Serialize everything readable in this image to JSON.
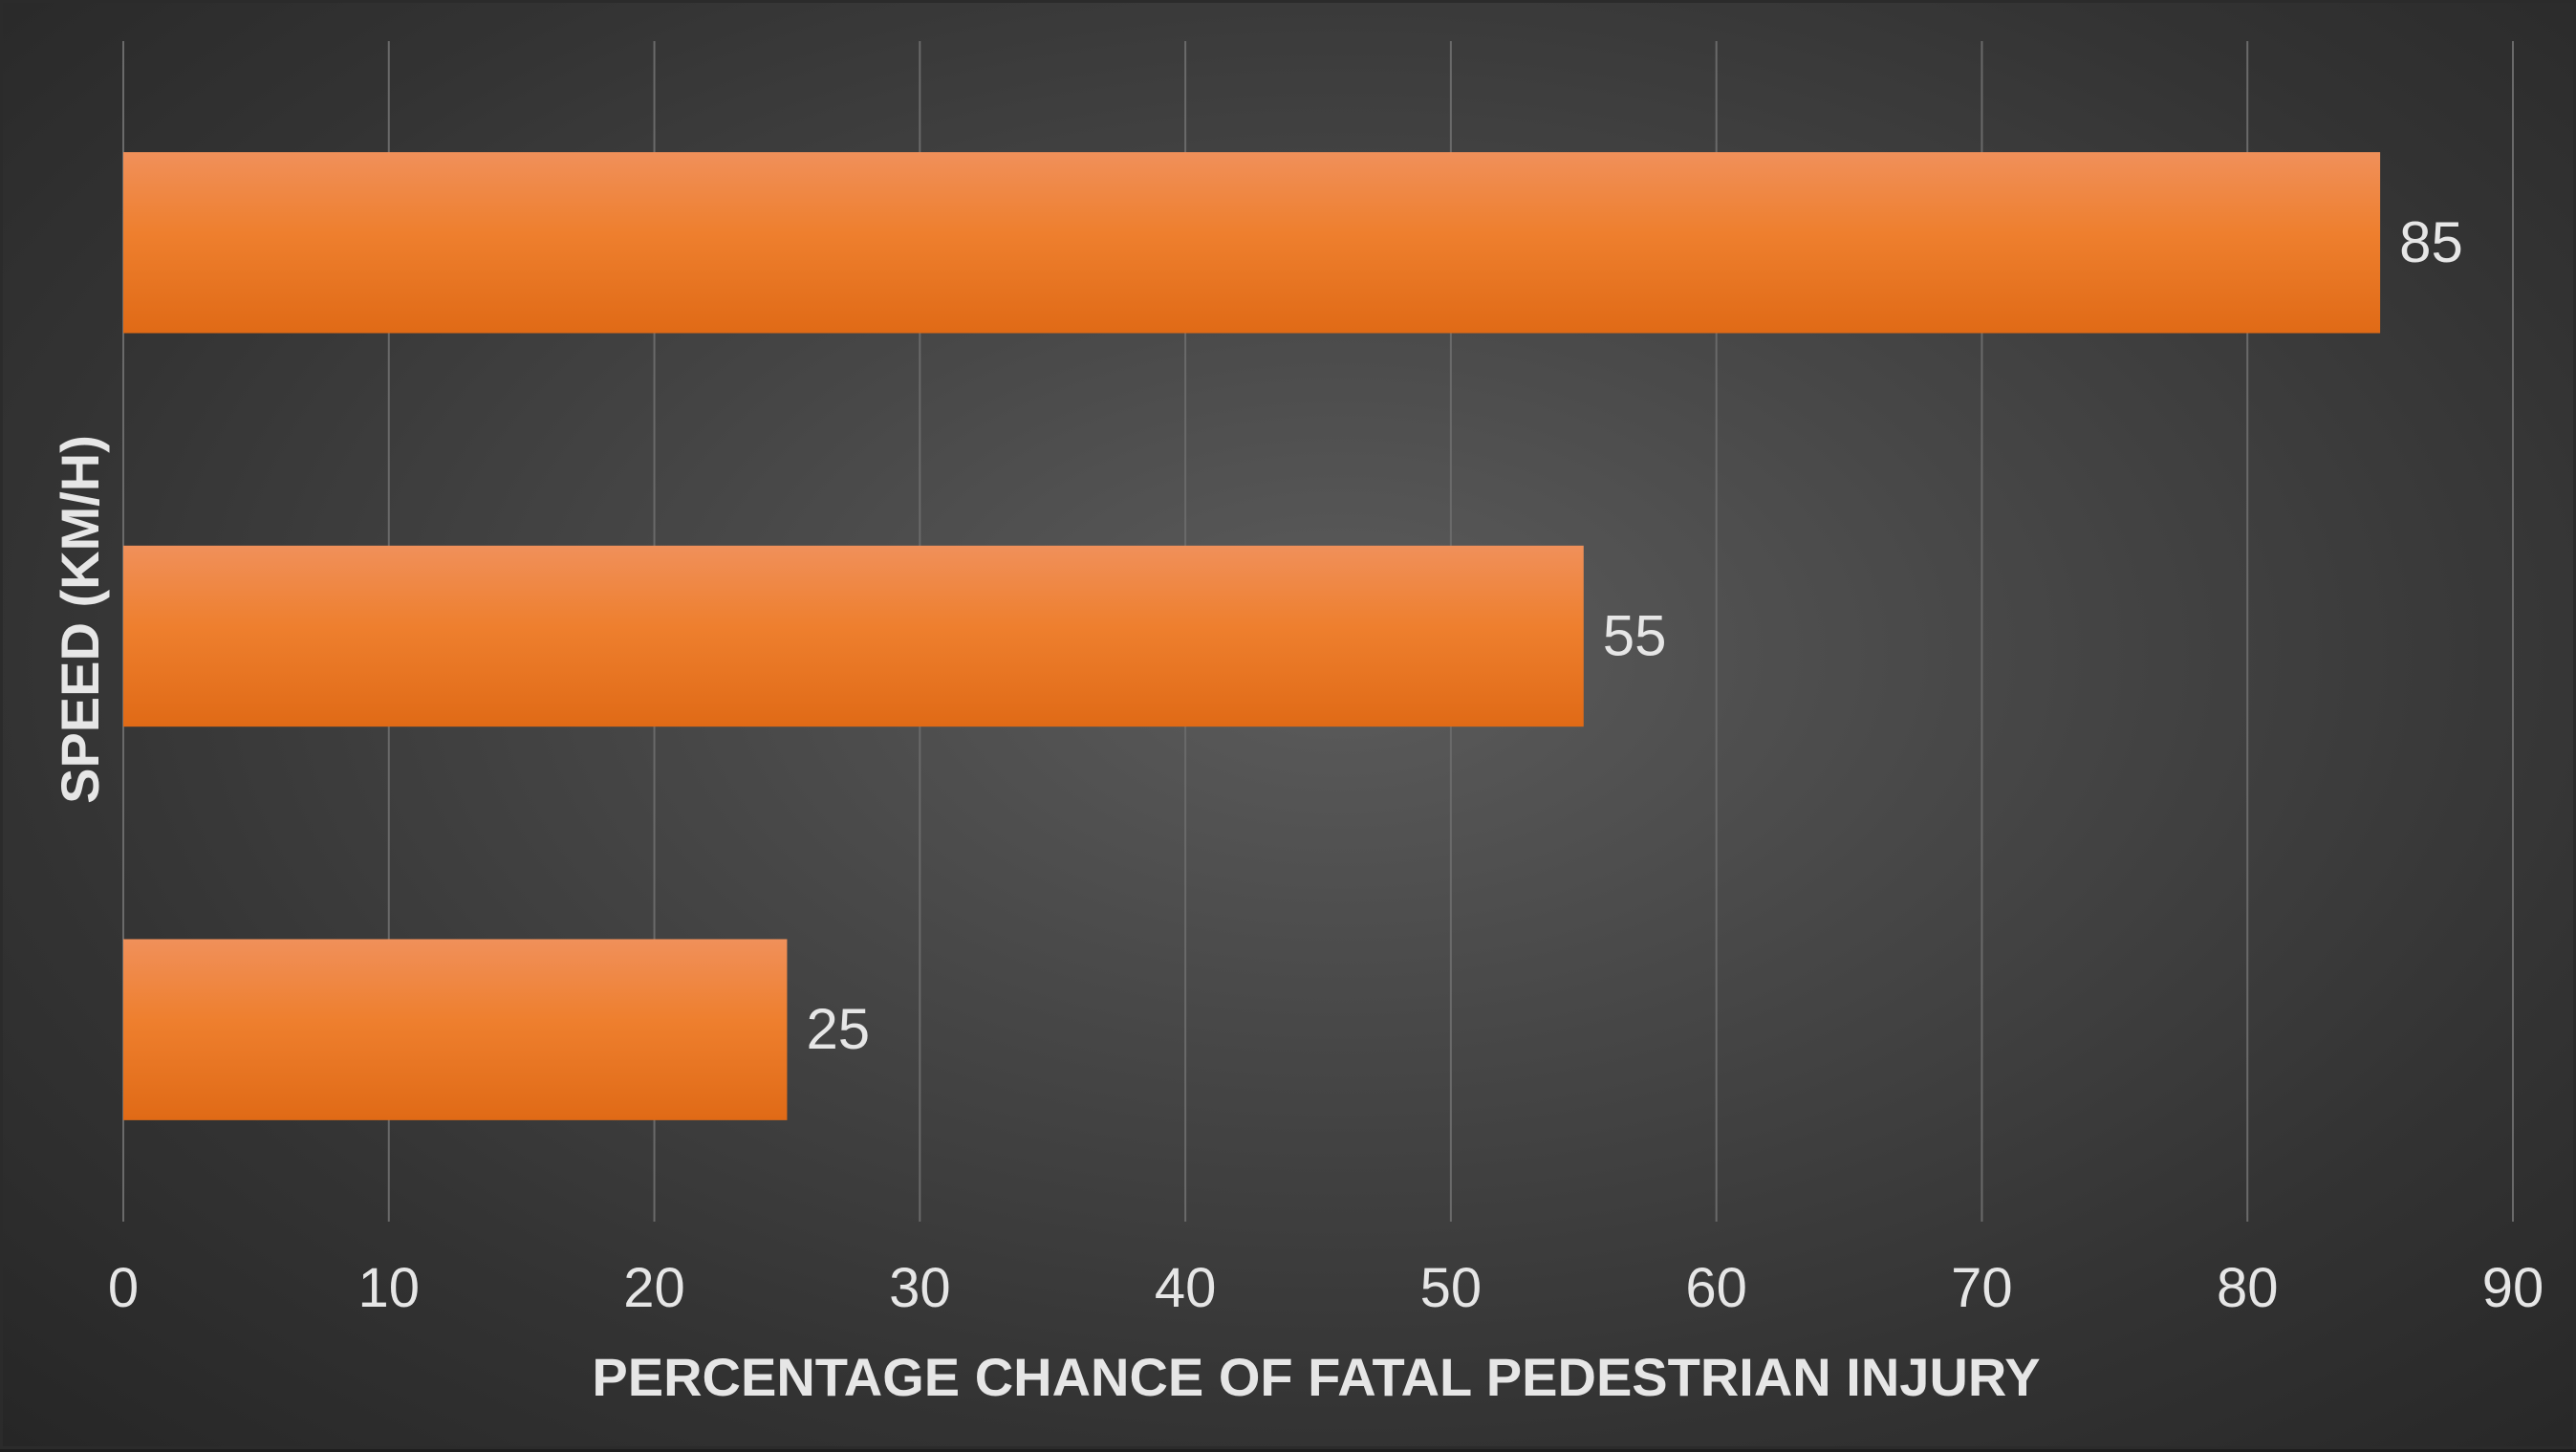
{
  "chart_data": {
    "type": "bar",
    "orientation": "horizontal",
    "categories": [
      "",
      "",
      ""
    ],
    "values": [
      85,
      55,
      25
    ],
    "xlabel": "PERCENTAGE CHANCE OF FATAL PEDESTRIAN INJURY",
    "ylabel": "SPEED (KM/H)",
    "xlim": [
      0,
      90
    ],
    "xticks": [
      "0",
      "10",
      "20",
      "30",
      "40",
      "50",
      "60",
      "70",
      "80",
      "90"
    ],
    "data_labels": [
      "85",
      "55",
      "25"
    ],
    "grid": "vertical",
    "legend": "none",
    "colors": {
      "bar_top": "#f0905a",
      "bar_bottom": "#e06a16",
      "text": "#e6e6e6",
      "grid": "#6a6a6a"
    }
  }
}
